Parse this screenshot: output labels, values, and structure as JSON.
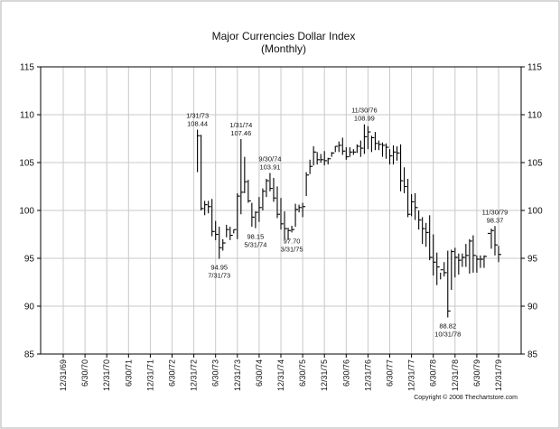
{
  "chart_data": {
    "type": "ohlc",
    "title": "Major Currencies Dollar Index",
    "subtitle": "(Monthly)",
    "copyright": "Copyright © 2008 Thechartstore.com",
    "ylim": [
      85,
      115
    ],
    "yticks": [
      85,
      90,
      95,
      100,
      105,
      110,
      115
    ],
    "grid": true,
    "x_tick_labels": [
      "12/31/69",
      "6/30/70",
      "12/31/70",
      "6/30/71",
      "12/31/71",
      "6/30/72",
      "12/31/72",
      "6/30/73",
      "12/31/73",
      "6/30/74",
      "12/31/74",
      "6/30/75",
      "12/31/75",
      "6/30/76",
      "12/31/76",
      "6/30/77",
      "12/31/77",
      "6/30/78",
      "12/31/78",
      "6/30/79",
      "12/31/79"
    ],
    "series": [
      {
        "dates": [
          "1/73",
          "2/73",
          "3/73",
          "4/73",
          "5/73",
          "6/73",
          "7/73",
          "8/73",
          "9/73",
          "10/73",
          "11/73",
          "12/73",
          "1/74",
          "2/74",
          "3/74",
          "4/74",
          "5/74",
          "6/74",
          "7/74",
          "8/74",
          "9/74",
          "10/74",
          "11/74",
          "12/74",
          "1/75",
          "2/75",
          "3/75",
          "4/75",
          "5/75",
          "6/75",
          "7/75",
          "8/75",
          "9/75",
          "10/75",
          "11/75",
          "12/75",
          "1/76",
          "2/76",
          "3/76",
          "4/76",
          "5/76",
          "6/76",
          "7/76",
          "8/76",
          "9/76",
          "10/76",
          "11/76",
          "12/76",
          "1/77",
          "2/77",
          "3/77",
          "4/77",
          "5/77",
          "6/77",
          "7/77",
          "8/77",
          "9/77",
          "10/77",
          "11/77",
          "12/77",
          "1/78",
          "2/78",
          "3/78",
          "4/78",
          "5/78",
          "6/78",
          "7/78",
          "8/78",
          "9/78",
          "10/78",
          "11/78",
          "12/78",
          "1/79",
          "2/79",
          "3/79",
          "4/79",
          "5/79",
          "6/79",
          "7/79",
          "8/79",
          "9/79",
          "10/79",
          "11/79",
          "12/79"
        ],
        "high": [
          108.44,
          107.9,
          101.0,
          101.0,
          101.2,
          98.9,
          98.3,
          97.0,
          98.5,
          98.3,
          98.0,
          101.8,
          107.46,
          105.6,
          103.2,
          100.8,
          99.9,
          101.4,
          102.3,
          103.3,
          103.91,
          103.4,
          102.5,
          101.3,
          99.9,
          98.2,
          98.4,
          100.7,
          100.6,
          100.8,
          104.0,
          105.3,
          106.7,
          106.1,
          105.9,
          106.2,
          105.5,
          106.1,
          106.7,
          107.2,
          107.6,
          106.6,
          106.6,
          106.4,
          106.9,
          107.3,
          108.99,
          108.8,
          107.8,
          108.2,
          107.3,
          107.1,
          107.0,
          106.4,
          106.8,
          106.7,
          106.9,
          104.5,
          103.3,
          101.7,
          101.8,
          100.0,
          99.3,
          98.7,
          99.5,
          97.5,
          95.6,
          93.5,
          94.6,
          95.8,
          95.9,
          96.1,
          95.5,
          95.5,
          96.5,
          97.0,
          97.4,
          95.3,
          95.3,
          95.3,
          95.4,
          98.1,
          98.37,
          96.3
        ],
        "low": [
          104.0,
          100.0,
          99.5,
          99.7,
          97.3,
          96.9,
          94.95,
          95.8,
          97.2,
          96.9,
          97.6,
          97.0,
          99.6,
          101.8,
          100.8,
          98.3,
          98.15,
          98.8,
          100.0,
          101.4,
          102.0,
          100.9,
          99.2,
          98.0,
          97.0,
          96.9,
          97.7,
          98.3,
          99.8,
          99.3,
          101.5,
          103.8,
          104.7,
          104.8,
          105.0,
          104.7,
          104.8,
          105.6,
          106.1,
          106.1,
          105.8,
          105.3,
          105.6,
          105.8,
          106.0,
          105.6,
          105.9,
          106.4,
          106.1,
          106.3,
          106.3,
          105.6,
          105.4,
          104.8,
          104.8,
          105.2,
          102.0,
          101.8,
          99.3,
          99.4,
          99.0,
          98.0,
          96.5,
          96.2,
          94.8,
          93.2,
          92.2,
          92.8,
          93.1,
          88.82,
          91.7,
          93.0,
          93.3,
          94.1,
          94.1,
          93.4,
          93.5,
          93.5,
          94.0,
          94.0,
          95.4,
          96.0,
          95.3,
          94.6
        ],
        "close": [
          107.8,
          100.2,
          100.6,
          100.4,
          97.8,
          97.5,
          96.1,
          96.6,
          98.0,
          97.4,
          98.0,
          101.5,
          101.9,
          103.0,
          101.0,
          99.3,
          99.8,
          100.3,
          102.0,
          103.1,
          102.3,
          101.3,
          99.6,
          98.6,
          98.1,
          97.9,
          98.0,
          100.1,
          100.3,
          100.4,
          103.7,
          104.6,
          106.1,
          105.3,
          105.3,
          105.2,
          105.4,
          106.0,
          106.7,
          106.8,
          106.2,
          105.6,
          106.1,
          106.1,
          106.7,
          106.5,
          107.7,
          108.2,
          107.6,
          107.0,
          106.9,
          106.8,
          106.6,
          105.7,
          106.1,
          106.0,
          103.1,
          102.5,
          99.6,
          100.9,
          100.3,
          99.0,
          98.1,
          97.7,
          95.1,
          94.6,
          94.1,
          93.8,
          93.5,
          89.5,
          95.7,
          95.1,
          94.8,
          95.1,
          95.3,
          96.8,
          95.3,
          94.9,
          94.9,
          95.2,
          97.6,
          97.9,
          96.4,
          95.4
        ]
      }
    ],
    "annotations": [
      {
        "date": "1/73",
        "lines": [
          "1/31/73",
          "108.44"
        ],
        "pos": "above"
      },
      {
        "date": "7/73",
        "lines": [
          "94.95",
          "7/31/73"
        ],
        "pos": "below"
      },
      {
        "date": "1/74",
        "lines": [
          "1/31/74",
          "107.46"
        ],
        "pos": "above"
      },
      {
        "date": "5/74",
        "lines": [
          "98.15",
          "5/31/74"
        ],
        "pos": "below"
      },
      {
        "date": "9/74",
        "lines": [
          "9/30/74",
          "103.91"
        ],
        "pos": "above"
      },
      {
        "date": "3/75",
        "lines": [
          "97.70",
          "3/31/75"
        ],
        "pos": "below"
      },
      {
        "date": "11/76",
        "lines": [
          "11/30/76",
          "108.99"
        ],
        "pos": "above"
      },
      {
        "date": "10/78",
        "lines": [
          "88.82",
          "10/31/78"
        ],
        "pos": "below"
      },
      {
        "date": "11/79",
        "lines": [
          "11/30/79",
          "98.37"
        ],
        "pos": "above"
      }
    ]
  }
}
